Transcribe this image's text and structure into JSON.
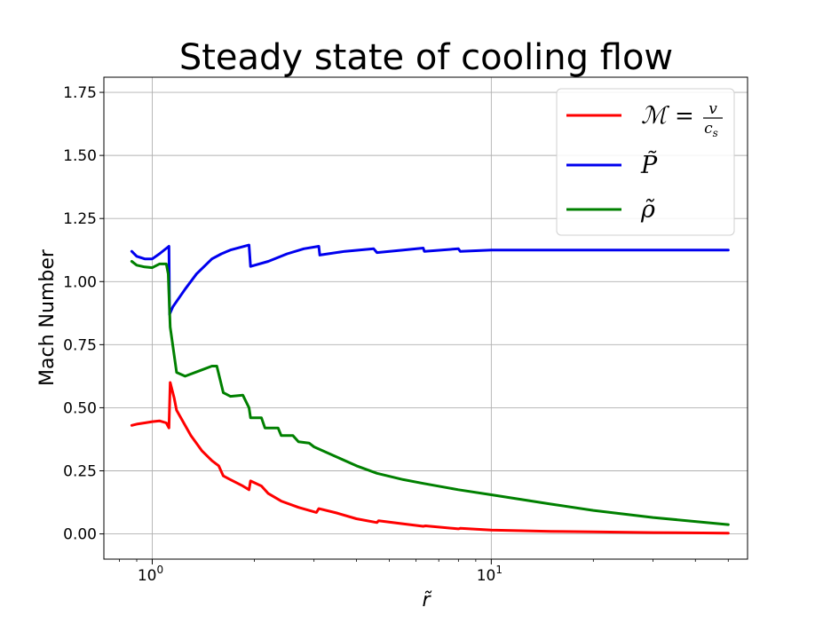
{
  "chart_data": {
    "type": "line",
    "title": "Steady state of cooling flow",
    "xlabel": "r̃",
    "ylabel": "Mach Number",
    "x_scale": "log",
    "xlim": [
      0.72,
      57
    ],
    "ylim": [
      -0.1,
      1.81
    ],
    "grid": true,
    "legend_position": "top-right",
    "x_ticks": [
      {
        "value": 1,
        "base": "10",
        "exp": "0"
      },
      {
        "value": 10,
        "base": "10",
        "exp": "1"
      }
    ],
    "y_ticks": [
      {
        "value": 0,
        "label": "0.00"
      },
      {
        "value": 0.25,
        "label": "0.25"
      },
      {
        "value": 0.5,
        "label": "0.50"
      },
      {
        "value": 0.75,
        "label": "0.75"
      },
      {
        "value": 1.0,
        "label": "1.00"
      },
      {
        "value": 1.25,
        "label": "1.25"
      },
      {
        "value": 1.5,
        "label": "1.50"
      },
      {
        "value": 1.75,
        "label": "1.75"
      }
    ],
    "series": [
      {
        "name": "ℳ = v / cₛ",
        "legend": {
          "lhs": "ℳ",
          "eq": "=",
          "num": "v",
          "den": "c",
          "den_sub": "s"
        },
        "color": "#ff0000",
        "points": [
          [
            0.87,
            0.43
          ],
          [
            0.9,
            0.435
          ],
          [
            0.95,
            0.44
          ],
          [
            1.0,
            0.445
          ],
          [
            1.05,
            0.448
          ],
          [
            1.1,
            0.44
          ],
          [
            1.12,
            0.42
          ],
          [
            1.13,
            0.6
          ],
          [
            1.16,
            0.54
          ],
          [
            1.18,
            0.49
          ],
          [
            1.25,
            0.43
          ],
          [
            1.3,
            0.39
          ],
          [
            1.4,
            0.33
          ],
          [
            1.5,
            0.29
          ],
          [
            1.57,
            0.27
          ],
          [
            1.62,
            0.23
          ],
          [
            1.7,
            0.215
          ],
          [
            1.85,
            0.19
          ],
          [
            1.93,
            0.175
          ],
          [
            1.95,
            0.21
          ],
          [
            2.1,
            0.19
          ],
          [
            2.2,
            0.16
          ],
          [
            2.4,
            0.13
          ],
          [
            2.7,
            0.105
          ],
          [
            3.05,
            0.085
          ],
          [
            3.1,
            0.1
          ],
          [
            3.5,
            0.083
          ],
          [
            4.0,
            0.06
          ],
          [
            4.6,
            0.045
          ],
          [
            4.65,
            0.052
          ],
          [
            5.5,
            0.04
          ],
          [
            6.3,
            0.03
          ],
          [
            6.4,
            0.032
          ],
          [
            8.0,
            0.02
          ],
          [
            8.1,
            0.022
          ],
          [
            10,
            0.015
          ],
          [
            15,
            0.01
          ],
          [
            20,
            0.008
          ],
          [
            30,
            0.005
          ],
          [
            50,
            0.003
          ]
        ]
      },
      {
        "name": "P̃",
        "legend": {
          "lhs": "P̃"
        },
        "color": "#0000ee",
        "points": [
          [
            0.87,
            1.12
          ],
          [
            0.9,
            1.1
          ],
          [
            0.95,
            1.09
          ],
          [
            1.0,
            1.09
          ],
          [
            1.05,
            1.11
          ],
          [
            1.12,
            1.14
          ],
          [
            1.125,
            0.87
          ],
          [
            1.15,
            0.9
          ],
          [
            1.25,
            0.97
          ],
          [
            1.35,
            1.03
          ],
          [
            1.5,
            1.09
          ],
          [
            1.6,
            1.11
          ],
          [
            1.7,
            1.125
          ],
          [
            1.93,
            1.145
          ],
          [
            1.95,
            1.06
          ],
          [
            2.2,
            1.08
          ],
          [
            2.5,
            1.11
          ],
          [
            2.8,
            1.13
          ],
          [
            3.1,
            1.14
          ],
          [
            3.12,
            1.105
          ],
          [
            3.7,
            1.12
          ],
          [
            4.5,
            1.13
          ],
          [
            4.6,
            1.115
          ],
          [
            5.5,
            1.125
          ],
          [
            6.3,
            1.133
          ],
          [
            6.35,
            1.12
          ],
          [
            8,
            1.13
          ],
          [
            8.1,
            1.12
          ],
          [
            10,
            1.125
          ],
          [
            15,
            1.125
          ],
          [
            30,
            1.125
          ],
          [
            50,
            1.125
          ]
        ]
      },
      {
        "name": "ρ̃",
        "legend": {
          "lhs": "ρ̃"
        },
        "color": "#008000",
        "points": [
          [
            0.87,
            1.08
          ],
          [
            0.9,
            1.065
          ],
          [
            0.95,
            1.058
          ],
          [
            1.0,
            1.055
          ],
          [
            1.05,
            1.07
          ],
          [
            1.1,
            1.07
          ],
          [
            1.115,
            1.03
          ],
          [
            1.12,
            0.95
          ],
          [
            1.13,
            0.82
          ],
          [
            1.18,
            0.64
          ],
          [
            1.25,
            0.625
          ],
          [
            1.4,
            0.65
          ],
          [
            1.5,
            0.665
          ],
          [
            1.55,
            0.665
          ],
          [
            1.62,
            0.56
          ],
          [
            1.7,
            0.545
          ],
          [
            1.85,
            0.55
          ],
          [
            1.93,
            0.5
          ],
          [
            1.95,
            0.46
          ],
          [
            2.1,
            0.46
          ],
          [
            2.15,
            0.42
          ],
          [
            2.35,
            0.42
          ],
          [
            2.4,
            0.39
          ],
          [
            2.6,
            0.39
          ],
          [
            2.7,
            0.365
          ],
          [
            2.9,
            0.36
          ],
          [
            3.0,
            0.345
          ],
          [
            3.5,
            0.305
          ],
          [
            4.0,
            0.27
          ],
          [
            4.6,
            0.24
          ],
          [
            5.5,
            0.215
          ],
          [
            6.3,
            0.2
          ],
          [
            8,
            0.175
          ],
          [
            10,
            0.155
          ],
          [
            15,
            0.118
          ],
          [
            20,
            0.093
          ],
          [
            30,
            0.065
          ],
          [
            50,
            0.037
          ]
        ]
      }
    ]
  }
}
